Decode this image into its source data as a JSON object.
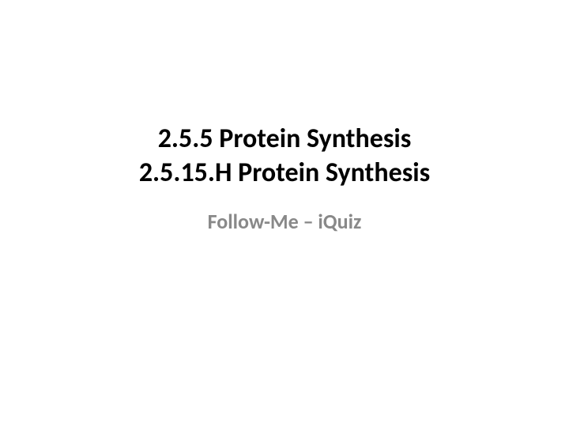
{
  "slide": {
    "title_line_1": "2.5.5 Protein Synthesis",
    "title_line_2": "2.5.15.H Protein Synthesis",
    "subtitle": "Follow-Me – iQuiz",
    "background_color": "#ffffff",
    "title_color": "#000000",
    "subtitle_color": "#898989",
    "title_fontsize": 34,
    "subtitle_fontsize": 26,
    "title_fontweight": 700,
    "subtitle_fontweight": 700
  }
}
